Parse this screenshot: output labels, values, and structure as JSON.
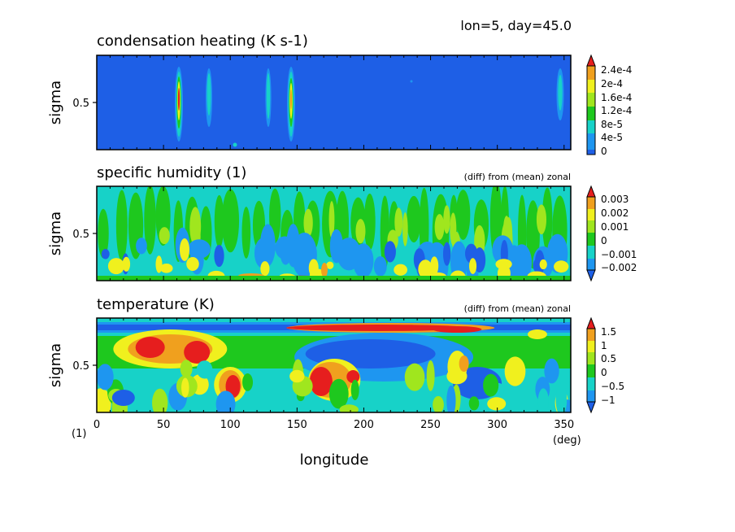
{
  "header": {
    "text": "lon=5, day=45.0"
  },
  "chart_data": [
    {
      "type": "heatmap",
      "title": "condensation heating (K s-1)",
      "note": "",
      "ylabel": "sigma",
      "y_ticks": [
        "0.5"
      ],
      "colorbar_labels": [
        "2.4e-4",
        "2e-4",
        "1.6e-4",
        "1.2e-4",
        "8e-5",
        "4e-5",
        "0"
      ],
      "colors": [
        "#1e5fe6",
        "#1e96f0",
        "#17d2c8",
        "#1ec81e",
        "#a0e61e",
        "#f0f01e",
        "#f0a01e",
        "#e61e1e"
      ],
      "features": [
        {
          "lon": 62,
          "sigma_top": 0.18,
          "sigma_bottom": 0.85,
          "max": 0.00024
        },
        {
          "lon": 84,
          "sigma_top": 0.18,
          "sigma_bottom": 0.75,
          "max": 9e-05
        },
        {
          "lon": 128,
          "sigma_top": 0.18,
          "sigma_bottom": 0.8,
          "max": 8e-05
        },
        {
          "lon": 146,
          "sigma_top": 0.15,
          "sigma_bottom": 0.85,
          "max": 0.00022
        },
        {
          "lon": 348,
          "sigma_top": 0.2,
          "sigma_bottom": 0.65,
          "max": 8e-05
        }
      ]
    },
    {
      "type": "heatmap",
      "title": "specific humidity (1)",
      "note": "(diff) from (mean) zonal",
      "ylabel": "sigma",
      "y_ticks": [
        "0.5"
      ],
      "colorbar_labels": [
        "0.003",
        "0.002",
        "0.001",
        "0",
        "−0.001",
        "−0.002"
      ],
      "colors": [
        "#1e5fe6",
        "#1e96f0",
        "#17d2c8",
        "#1ec81e",
        "#a0e61e",
        "#f0f01e",
        "#f0a01e",
        "#e61e1e"
      ]
    },
    {
      "type": "heatmap",
      "title": "temperature (K)",
      "note": "(diff) from (mean) zonal",
      "ylabel": "sigma",
      "y_ticks": [
        "0.5"
      ],
      "colorbar_labels": [
        "1.5",
        "1",
        "0.5",
        "0",
        "−0.5",
        "−1"
      ],
      "colors": [
        "#1e5fe6",
        "#1e96f0",
        "#17d2c8",
        "#1ec81e",
        "#a0e61e",
        "#f0f01e",
        "#f0a01e",
        "#e61e1e"
      ],
      "xlabel": "longitude",
      "x_ticks": [
        "0",
        "50",
        "100",
        "150",
        "200",
        "250",
        "300",
        "350"
      ],
      "x_range": [
        0,
        355
      ],
      "x_unit": "(deg)",
      "y_unit": "(1)"
    }
  ]
}
